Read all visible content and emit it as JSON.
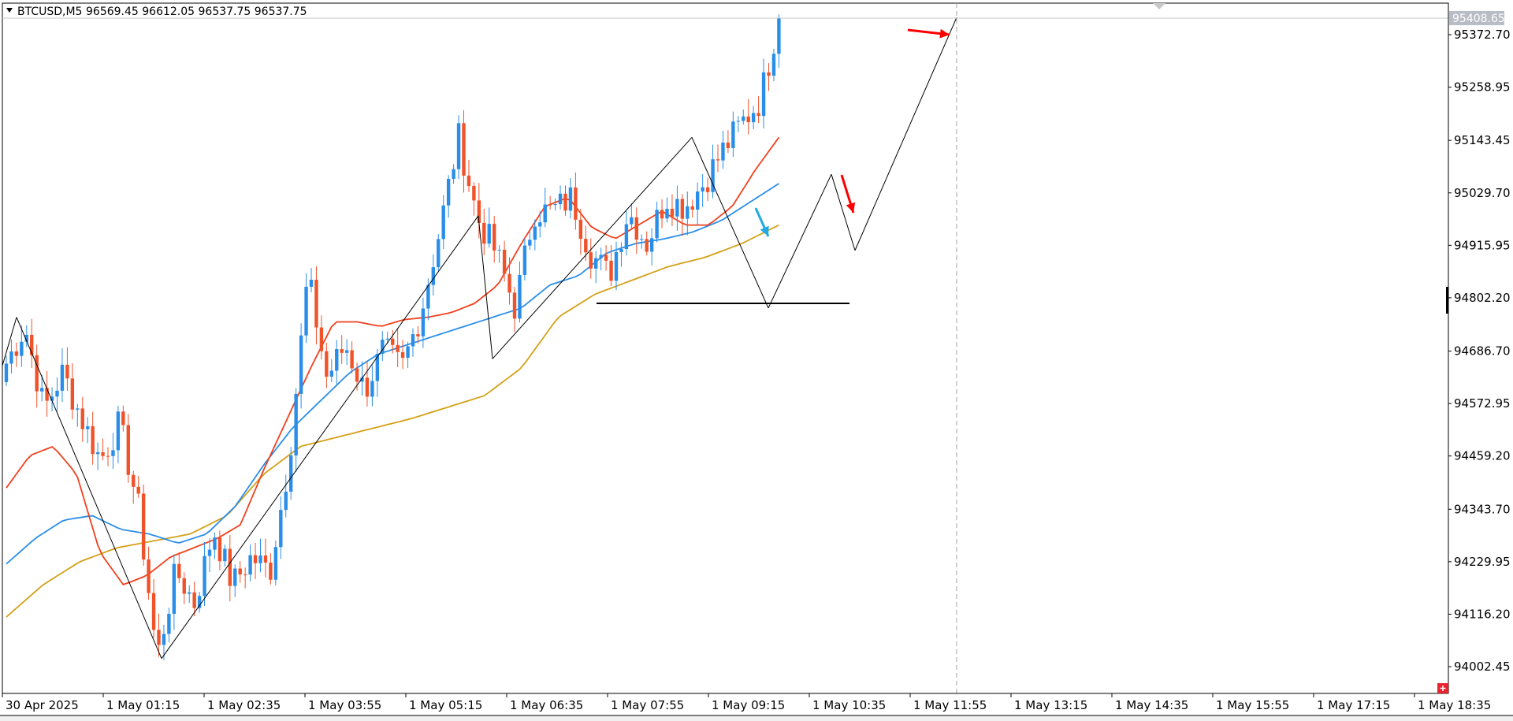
{
  "header": {
    "symbol": "BTCUSD,M5",
    "ohlc": "96569.45 96612.05 96537.75 96537.75"
  },
  "colors": {
    "bull": "#2a8ee8",
    "bear": "#f0522a",
    "ma_fast": "#f0401e",
    "ma_mid": "#2a8ee8",
    "ma_slow": "#d4a017",
    "current_price_bg": "#b8bcc4",
    "arrow_red": "#ff0000",
    "arrow_cyan": "#21a9e1"
  },
  "chart_data": {
    "type": "candlestick",
    "ylim": [
      93950,
      95460
    ],
    "y_ticks": [
      "95372.70",
      "95258.95",
      "95143.45",
      "95029.70",
      "94915.95",
      "94802.20",
      "94686.70",
      "94572.95",
      "94459.20",
      "94343.70",
      "94229.95",
      "94116.20",
      "94002.45"
    ],
    "x_ticks": [
      "30 Apr 2025",
      "1 May 01:15",
      "1 May 02:35",
      "1 May 03:55",
      "1 May 05:15",
      "1 May 06:35",
      "1 May 07:55",
      "1 May 09:15",
      "1 May 10:35",
      "1 May 11:55",
      "1 May 13:15",
      "1 May 14:35",
      "1 May 15:55",
      "1 May 17:15",
      "1 May 18:35"
    ],
    "current_price": "95408.65",
    "key_prices": [
      94660,
      94740,
      94560,
      94640,
      94540,
      94450,
      94530,
      94350,
      94020,
      94210,
      94140,
      94300,
      94180,
      94240,
      94210,
      94450,
      94850,
      94630,
      94700,
      94600,
      94690,
      94650,
      94770,
      94950,
      95150,
      94975,
      94900,
      94780,
      94990,
      94990,
      95020,
      94900,
      94850,
      94990,
      94920,
      95020,
      95000,
      95050,
      95120,
      95180,
      95230,
      95410
    ],
    "key_ma_fast": [
      94390,
      94460,
      94480,
      94420,
      94250,
      94180,
      94200,
      94240,
      94260,
      94280,
      94310,
      94430,
      94540,
      94650,
      94750,
      94750,
      94740,
      94755,
      94760,
      94770,
      94790,
      94830,
      94920,
      95000,
      95020,
      94955,
      94930,
      94960,
      94990,
      94960,
      94960,
      95000,
      95080,
      95150
    ],
    "key_ma_mid": [
      94225,
      94280,
      94320,
      94330,
      94300,
      94290,
      94270,
      94290,
      94350,
      94440,
      94520,
      94580,
      94640,
      94680,
      94700,
      94720,
      94740,
      94760,
      94780,
      94830,
      94850,
      94900,
      94920,
      94930,
      94945,
      94970,
      95010,
      95050
    ],
    "key_ma_slow": [
      94110,
      94180,
      94230,
      94260,
      94275,
      94290,
      94330,
      94420,
      94480,
      94500,
      94520,
      94540,
      94565,
      94590,
      94650,
      94760,
      94810,
      94840,
      94870,
      94890,
      94920,
      94960
    ],
    "zigzag": [
      [
        94650,
        94760
      ],
      [
        94620,
        94020
      ],
      [
        94970,
        94980
      ],
      [
        94670,
        95150
      ],
      [
        95140,
        94780
      ],
      [
        94775,
        95070
      ],
      [
        94950,
        94910
      ],
      [
        95300,
        95410
      ]
    ],
    "support_level": 94790,
    "arrows": [
      {
        "color": "red",
        "value": 95395
      },
      {
        "color": "cyan",
        "value": 94960
      },
      {
        "color": "red",
        "value": 95000
      }
    ]
  }
}
